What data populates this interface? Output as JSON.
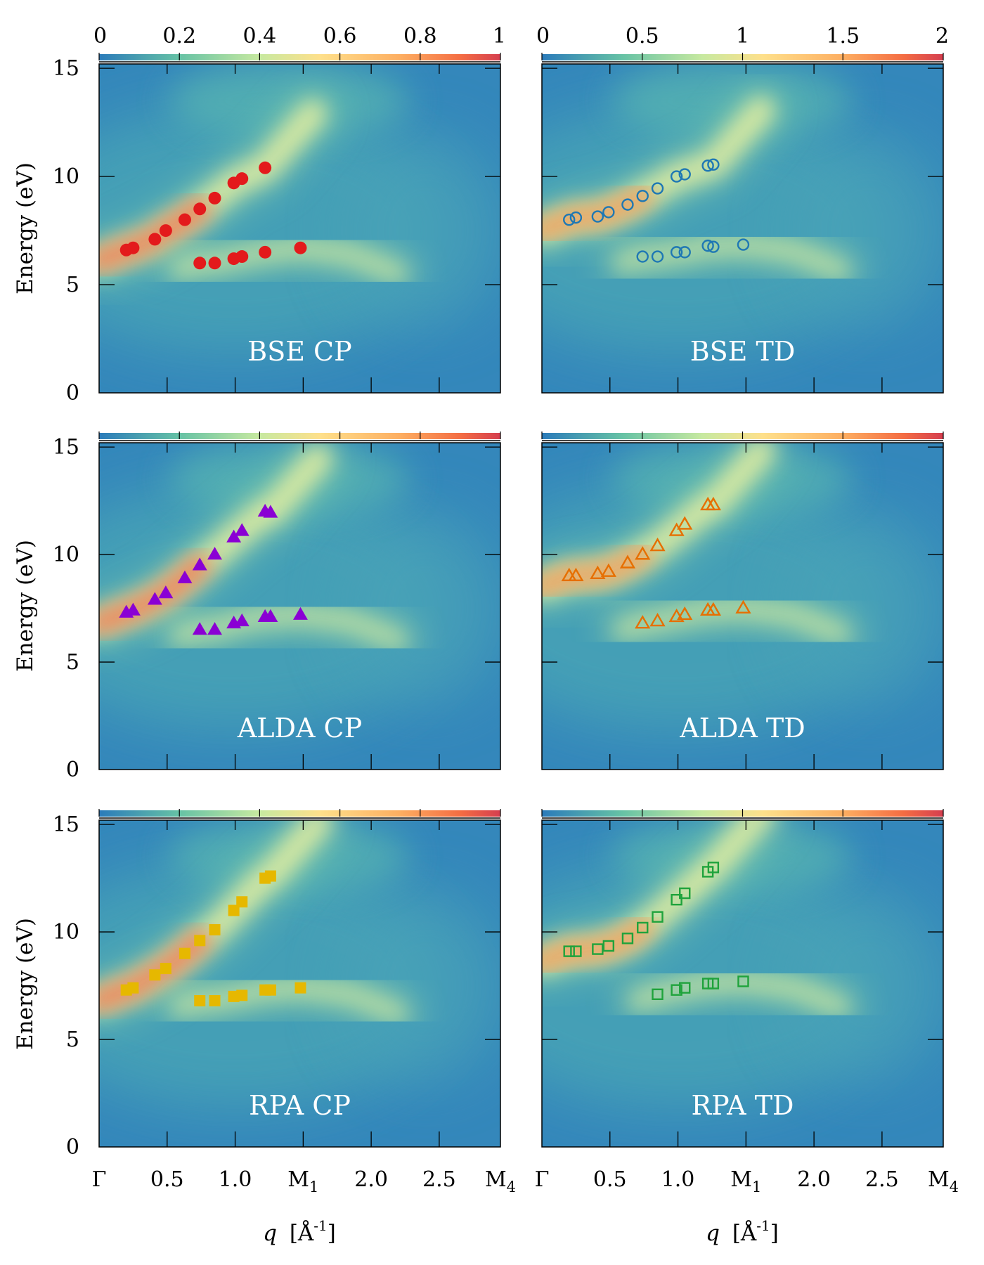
{
  "figure": {
    "ylabel": "Energy (eV)",
    "xlabel_var": "q",
    "xlabel_unit": "[Å",
    "xlabel_exp": "-1",
    "xlabel_close": "]",
    "colors": {
      "BSE CP": "#e31a1c",
      "BSE TD": "#1f78b4",
      "ALDA CP": "#8a00d4",
      "ALDA TD": "#e66f00",
      "RPA CP": "#e6b800",
      "RPA TD": "#1fa33c"
    }
  },
  "chart_data": [
    {
      "type": "scatter",
      "panel_label": "BSE CP",
      "marker": "filled-circle",
      "x_ticks": [
        "Γ",
        "0.5",
        "1.0",
        "M1",
        "2.0",
        "2.5",
        "M4"
      ],
      "x_tick_positions": [
        0,
        0.5,
        1.0,
        1.5,
        2.0,
        2.5,
        2.95
      ],
      "xlim": [
        0,
        2.95
      ],
      "y_ticks": [
        "0",
        "5",
        "10",
        "15"
      ],
      "ylim": [
        0,
        15.2
      ],
      "colorbar": {
        "ticks": [
          "0",
          "0.2",
          "0.4",
          "0.6",
          "0.8",
          "1"
        ],
        "range": [
          0,
          1
        ],
        "location": "top"
      },
      "series": [
        {
          "x": [
            0.2,
            0.25,
            0.41,
            0.49,
            0.63,
            0.74,
            0.85,
            0.99,
            1.05,
            1.22
          ],
          "y": [
            6.6,
            6.7,
            7.1,
            7.5,
            8.0,
            8.5,
            9.0,
            9.7,
            9.9,
            10.4
          ]
        },
        {
          "x": [
            0.74,
            0.85,
            0.99,
            1.05,
            1.22,
            1.48
          ],
          "y": [
            6.0,
            6.0,
            6.2,
            6.3,
            6.5,
            6.7
          ]
        }
      ]
    },
    {
      "type": "scatter",
      "panel_label": "BSE TD",
      "marker": "open-circle",
      "x_ticks": [
        "Γ",
        "0.5",
        "1.0",
        "M1",
        "2.0",
        "2.5",
        "M4"
      ],
      "x_tick_positions": [
        0,
        0.5,
        1.0,
        1.5,
        2.0,
        2.5,
        2.95
      ],
      "xlim": [
        0,
        2.95
      ],
      "y_ticks": [
        "0",
        "5",
        "10",
        "15"
      ],
      "ylim": [
        0,
        15.2
      ],
      "colorbar": {
        "ticks": [
          "0",
          "0.5",
          "1",
          "1.5",
          "2"
        ],
        "range": [
          0,
          2
        ],
        "location": "top"
      },
      "series": [
        {
          "x": [
            0.2,
            0.25,
            0.41,
            0.49,
            0.63,
            0.74,
            0.85,
            0.99,
            1.05,
            1.22,
            1.26
          ],
          "y": [
            8.0,
            8.1,
            8.15,
            8.35,
            8.7,
            9.1,
            9.45,
            10.0,
            10.1,
            10.5,
            10.55
          ]
        },
        {
          "x": [
            0.74,
            0.85,
            0.99,
            1.05,
            1.22,
            1.26,
            1.48
          ],
          "y": [
            6.3,
            6.3,
            6.5,
            6.5,
            6.8,
            6.75,
            6.85
          ]
        }
      ]
    },
    {
      "type": "scatter",
      "panel_label": "ALDA CP",
      "marker": "filled-triangle",
      "x_ticks": [
        "Γ",
        "0.5",
        "1.0",
        "M1",
        "2.0",
        "2.5",
        "M4"
      ],
      "x_tick_positions": [
        0,
        0.5,
        1.0,
        1.5,
        2.0,
        2.5,
        2.95
      ],
      "xlim": [
        0,
        2.95
      ],
      "y_ticks": [
        "0",
        "5",
        "10",
        "15"
      ],
      "ylim": [
        0,
        15.2
      ],
      "colorbar": {
        "ticks": [],
        "range": [
          0,
          1
        ],
        "location": "top"
      },
      "series": [
        {
          "x": [
            0.2,
            0.25,
            0.41,
            0.49,
            0.63,
            0.74,
            0.85,
            0.99,
            1.05,
            1.22,
            1.26
          ],
          "y": [
            7.3,
            7.4,
            7.9,
            8.2,
            8.9,
            9.5,
            10.0,
            10.8,
            11.1,
            12.0,
            11.95
          ]
        },
        {
          "x": [
            0.74,
            0.85,
            0.99,
            1.05,
            1.22,
            1.26,
            1.48
          ],
          "y": [
            6.5,
            6.5,
            6.8,
            6.9,
            7.1,
            7.1,
            7.2
          ]
        }
      ]
    },
    {
      "type": "scatter",
      "panel_label": "ALDA TD",
      "marker": "open-triangle",
      "x_ticks": [
        "Γ",
        "0.5",
        "1.0",
        "M1",
        "2.0",
        "2.5",
        "M4"
      ],
      "x_tick_positions": [
        0,
        0.5,
        1.0,
        1.5,
        2.0,
        2.5,
        2.95
      ],
      "xlim": [
        0,
        2.95
      ],
      "y_ticks": [
        "0",
        "5",
        "10",
        "15"
      ],
      "ylim": [
        0,
        15.2
      ],
      "colorbar": {
        "ticks": [],
        "range": [
          0,
          2
        ],
        "location": "top"
      },
      "series": [
        {
          "x": [
            0.2,
            0.25,
            0.41,
            0.49,
            0.63,
            0.74,
            0.85,
            0.99,
            1.05,
            1.22,
            1.26
          ],
          "y": [
            9.0,
            9.0,
            9.1,
            9.2,
            9.6,
            10.0,
            10.4,
            11.1,
            11.4,
            12.3,
            12.3
          ]
        },
        {
          "x": [
            0.74,
            0.85,
            0.99,
            1.05,
            1.22,
            1.26,
            1.48
          ],
          "y": [
            6.8,
            6.9,
            7.1,
            7.2,
            7.4,
            7.4,
            7.5
          ]
        }
      ]
    },
    {
      "type": "scatter",
      "panel_label": "RPA CP",
      "marker": "filled-square",
      "x_ticks": [
        "Γ",
        "0.5",
        "1.0",
        "M1",
        "2.0",
        "2.5",
        "M4"
      ],
      "x_tick_positions": [
        0,
        0.5,
        1.0,
        1.5,
        2.0,
        2.5,
        2.95
      ],
      "xlim": [
        0,
        2.95
      ],
      "y_ticks": [
        "0",
        "5",
        "10",
        "15"
      ],
      "ylim": [
        0,
        15.2
      ],
      "colorbar": {
        "ticks": [],
        "range": [
          0,
          1
        ],
        "location": "top"
      },
      "series": [
        {
          "x": [
            0.2,
            0.25,
            0.41,
            0.49,
            0.63,
            0.74,
            0.85,
            0.99,
            1.05,
            1.22,
            1.26
          ],
          "y": [
            7.3,
            7.4,
            8.0,
            8.3,
            9.0,
            9.6,
            10.1,
            11.0,
            11.4,
            12.5,
            12.6
          ]
        },
        {
          "x": [
            0.74,
            0.85,
            0.99,
            1.05,
            1.22,
            1.26,
            1.48
          ],
          "y": [
            6.8,
            6.8,
            7.0,
            7.05,
            7.3,
            7.3,
            7.4
          ]
        }
      ]
    },
    {
      "type": "scatter",
      "panel_label": "RPA TD",
      "marker": "open-square",
      "x_ticks": [
        "Γ",
        "0.5",
        "1.0",
        "M1",
        "2.0",
        "2.5",
        "M4"
      ],
      "x_tick_positions": [
        0,
        0.5,
        1.0,
        1.5,
        2.0,
        2.5,
        2.95
      ],
      "xlim": [
        0,
        2.95
      ],
      "y_ticks": [
        "0",
        "5",
        "10",
        "15"
      ],
      "ylim": [
        0,
        15.2
      ],
      "colorbar": {
        "ticks": [],
        "range": [
          0,
          2
        ],
        "location": "top"
      },
      "series": [
        {
          "x": [
            0.2,
            0.25,
            0.41,
            0.49,
            0.63,
            0.74,
            0.85,
            0.99,
            1.05,
            1.22,
            1.26
          ],
          "y": [
            9.1,
            9.1,
            9.2,
            9.35,
            9.7,
            10.2,
            10.7,
            11.5,
            11.8,
            12.8,
            13.0
          ]
        },
        {
          "x": [
            0.85,
            0.99,
            1.05,
            1.22,
            1.26,
            1.48
          ],
          "y": [
            7.1,
            7.3,
            7.4,
            7.6,
            7.6,
            7.7
          ]
        }
      ]
    }
  ]
}
